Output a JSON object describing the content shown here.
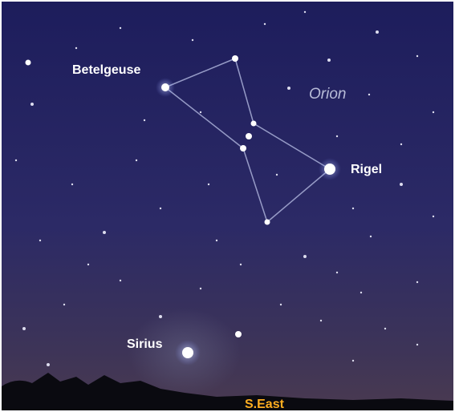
{
  "labels": {
    "betelgeuse": "Betelgeuse",
    "constellation": "Orion",
    "rigel": "Rigel",
    "sirius": "Sirius",
    "direction": "S.East"
  }
}
